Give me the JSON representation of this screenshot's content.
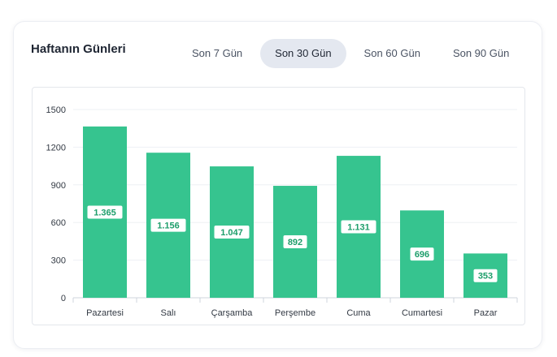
{
  "card": {
    "title": "Haftanın Günleri"
  },
  "tabs": [
    {
      "label": "Son 7 Gün",
      "active": false
    },
    {
      "label": "Son 30 Gün",
      "active": true
    },
    {
      "label": "Son 60 Gün",
      "active": false
    },
    {
      "label": "Son 90 Gün",
      "active": false
    }
  ],
  "colors": {
    "bar": "#36c48f",
    "label_text": "#1e9e6b",
    "active_tab": "#e4e8f0"
  },
  "chart_data": {
    "type": "bar",
    "categories": [
      "Pazartesi",
      "Salı",
      "Çarşamba",
      "Perşembe",
      "Cuma",
      "Cumartesi",
      "Pazar"
    ],
    "values": [
      1365,
      1156,
      1047,
      892,
      1131,
      696,
      353
    ],
    "value_labels": [
      "1.365",
      "1.156",
      "1.047",
      "892",
      "1.131",
      "696",
      "353"
    ],
    "yticks": [
      0,
      300,
      600,
      900,
      1200,
      1500
    ],
    "ylim": [
      0,
      1500
    ],
    "grid": true,
    "legend": "none"
  }
}
